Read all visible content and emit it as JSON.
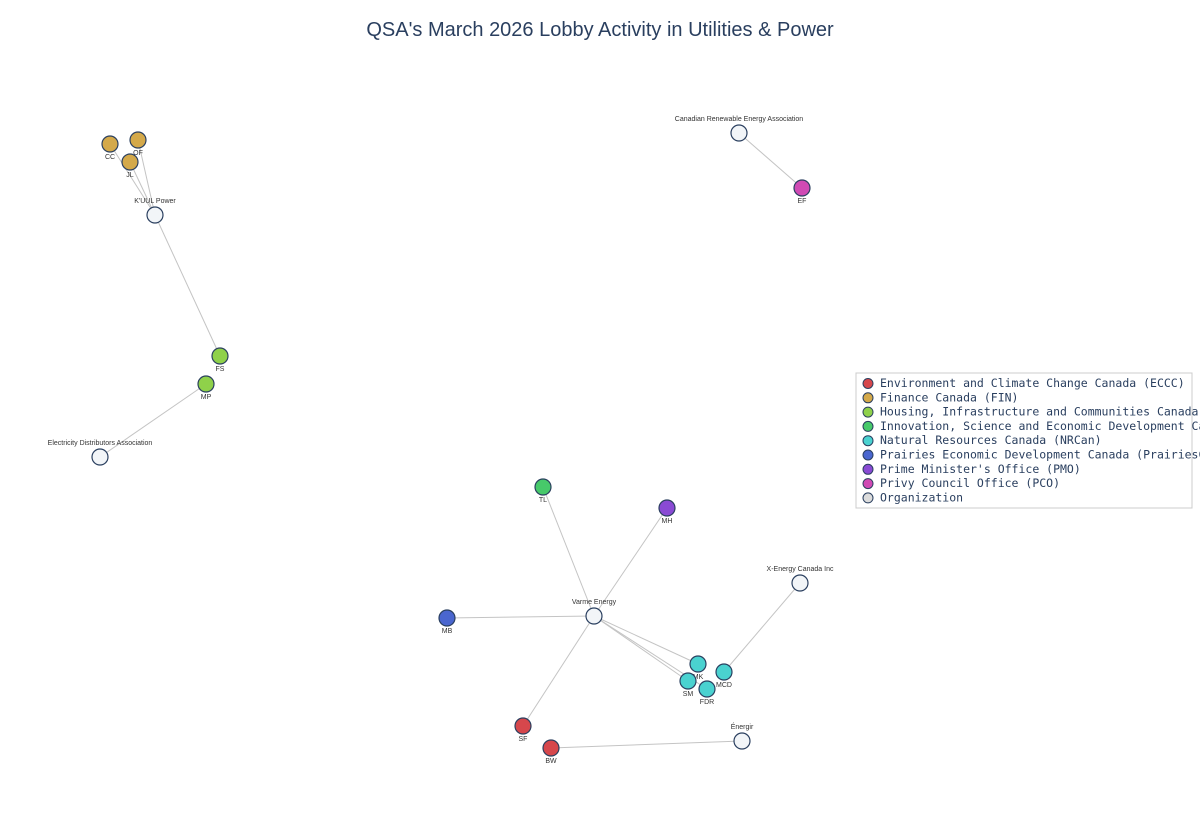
{
  "title": "QSA's March 2026 Lobby Activity in Utilities & Power",
  "legend": [
    {
      "name": "Environment and Climate Change Canada (ECCC)",
      "color": "#d6474c"
    },
    {
      "name": "Finance Canada (FIN)",
      "color": "#d4a94a"
    },
    {
      "name": "Housing, Infrastructure and Communities Canada (HICC)",
      "color": "#8fd14a"
    },
    {
      "name": "Innovation, Science and Economic Development Canada (ISED)",
      "color": "#47c96a"
    },
    {
      "name": "Natural Resources Canada (NRCan)",
      "color": "#4ad2d0"
    },
    {
      "name": "Prairies Economic Development Canada (PrairiesCan)",
      "color": "#4a66cf"
    },
    {
      "name": "Prime Minister's Office (PMO)",
      "color": "#8a4ad4"
    },
    {
      "name": "Privy Council Office (PCO)",
      "color": "#d04ab4"
    },
    {
      "name": "Organization",
      "color": "#dcdcdc"
    }
  ],
  "nodes": [
    {
      "label": "CC",
      "group": 1
    },
    {
      "label": "OF",
      "group": 1
    },
    {
      "label": "JL",
      "group": 1
    },
    {
      "label": "K'UUL Power",
      "group": 8
    },
    {
      "label": "FS",
      "group": 2
    },
    {
      "label": "MP",
      "group": 2
    },
    {
      "label": "Electricity Distributors Association",
      "group": 8
    },
    {
      "label": "Canadian Renewable Energy Association",
      "group": 8
    },
    {
      "label": "EF",
      "group": 7
    },
    {
      "label": "TL",
      "group": 3
    },
    {
      "label": "MH",
      "group": 6
    },
    {
      "label": "MB",
      "group": 5
    },
    {
      "label": "Varme Energy",
      "group": 8
    },
    {
      "label": "X-Energy Canada Inc",
      "group": 8
    },
    {
      "label": "MK",
      "group": 4
    },
    {
      "label": "MCD",
      "group": 4
    },
    {
      "label": "SM",
      "group": 4
    },
    {
      "label": "FDR",
      "group": 4
    },
    {
      "label": "SF",
      "group": 0
    },
    {
      "label": "BW",
      "group": 0
    },
    {
      "label": "Énergir",
      "group": 8
    }
  ],
  "edges": [
    [
      0,
      3
    ],
    [
      1,
      3
    ],
    [
      2,
      3
    ],
    [
      3,
      4
    ],
    [
      5,
      6
    ],
    [
      7,
      8
    ],
    [
      12,
      9
    ],
    [
      12,
      10
    ],
    [
      12,
      11
    ],
    [
      12,
      18
    ],
    [
      12,
      14
    ],
    [
      12,
      16
    ],
    [
      12,
      17
    ],
    [
      13,
      15
    ],
    [
      20,
      19
    ]
  ]
}
